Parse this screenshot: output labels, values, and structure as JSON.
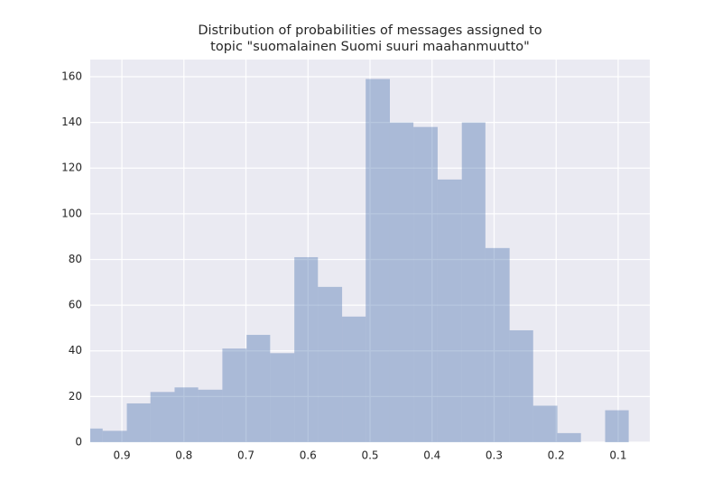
{
  "chart_data": {
    "type": "histogram",
    "title": [
      "Distribution of probabilities of messages assigned to",
      "topic \"suomalainen Suomi suuri maahanmuutto\""
    ],
    "bins": [
      0.083,
      0.121,
      0.16,
      0.198,
      0.237,
      0.275,
      0.314,
      0.352,
      0.391,
      0.43,
      0.468,
      0.507,
      0.545,
      0.584,
      0.622,
      0.661,
      0.699,
      0.738,
      0.777,
      0.815,
      0.854,
      0.892,
      0.931,
      0.969
    ],
    "values": [
      14,
      0,
      4,
      16,
      49,
      85,
      140,
      115,
      138,
      140,
      159,
      55,
      68,
      81,
      39,
      47,
      41,
      23,
      24,
      22,
      17,
      5,
      6
    ],
    "color": "#4c72b0",
    "alpha": 0.4,
    "xlim": [
      0.951,
      0.049
    ],
    "xticks": [
      0.9,
      0.8,
      0.7,
      0.6,
      0.5,
      0.4,
      0.3,
      0.2,
      0.1
    ],
    "ylim": [
      0,
      167.5
    ],
    "yticks": [
      0,
      20,
      40,
      60,
      80,
      100,
      120,
      140,
      160
    ],
    "grid": true
  }
}
